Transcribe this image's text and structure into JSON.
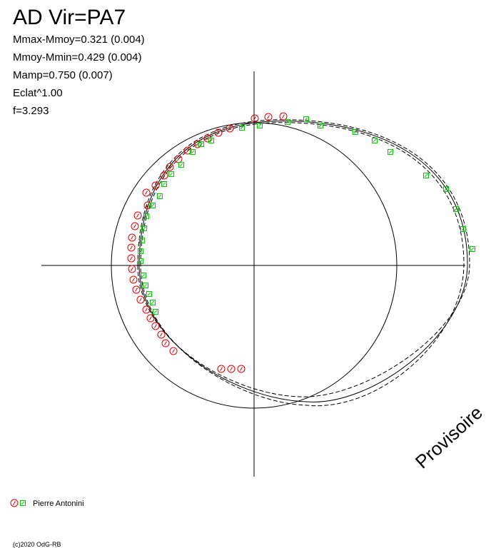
{
  "chart_data": {
    "type": "scatter",
    "title": "AD Vir=PA7",
    "annotations": [
      "Mmax-Mmoy=0.321 (0.004)",
      "Mmoy-Mmin=0.429 (0.004)",
      "Mamp=0.750 (0.007)",
      "Eclat^1.00",
      "f=3.293"
    ],
    "watermark": "Provisoire",
    "footer": "(c)2020 OdG-RB",
    "xlim": [
      -1.5,
      1.55
    ],
    "ylim": [
      -1.5,
      1.5
    ],
    "series": [
      {
        "name": "Pierre Antonini",
        "color": "#e00000",
        "marker": "circle",
        "x": [
          0.005,
          0.1,
          0.205,
          -0.17,
          -0.25,
          -0.325,
          -0.395,
          -0.465,
          -0.53,
          -0.59,
          -0.63,
          -0.69,
          -0.755,
          -0.745,
          -0.815,
          -0.835,
          -0.855,
          -0.86,
          -0.86,
          -0.855,
          -0.845,
          -0.825,
          -0.795,
          -0.755,
          -0.725,
          -0.69,
          -0.65,
          -0.62,
          -0.565,
          -0.23,
          -0.16,
          -0.09
        ],
        "y": [
          1.03,
          1.04,
          1.045,
          0.96,
          0.93,
          0.89,
          0.85,
          0.805,
          0.745,
          0.69,
          0.63,
          0.56,
          0.51,
          0.42,
          0.35,
          0.275,
          0.195,
          0.125,
          0.05,
          -0.025,
          -0.1,
          -0.17,
          -0.24,
          -0.31,
          -0.37,
          -0.425,
          -0.485,
          -0.545,
          -0.6,
          -0.725,
          -0.725,
          -0.725
        ]
      },
      {
        "color": "#00cc00",
        "marker": "square",
        "x": [
          -0.085,
          0.04,
          0.235,
          0.365,
          0.465,
          0.71,
          0.845,
          0.955,
          1.205,
          1.345,
          1.415,
          1.465,
          1.53,
          -0.3,
          -0.37,
          -0.43,
          -0.51,
          -0.58,
          -0.63,
          -0.66,
          -0.71,
          -0.755,
          -0.77,
          -0.785,
          -0.795,
          -0.795,
          -0.775,
          -0.76,
          -0.735,
          -0.71,
          -0.69
        ],
        "y": [
          0.965,
          0.98,
          1.005,
          1.025,
          0.98,
          0.935,
          0.875,
          0.795,
          0.63,
          0.535,
          0.395,
          0.255,
          0.115,
          0.875,
          0.85,
          0.795,
          0.705,
          0.64,
          0.57,
          0.485,
          0.42,
          0.345,
          0.26,
          0.175,
          0.1,
          0.03,
          -0.07,
          -0.14,
          -0.2,
          -0.26,
          -0.325
        ]
      }
    ]
  }
}
